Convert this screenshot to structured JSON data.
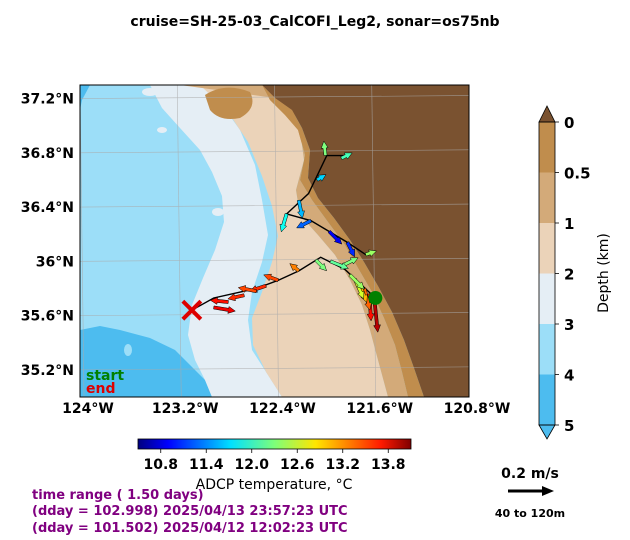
{
  "title": "cruise=SH-25-03_CalCOFI_Leg2,   sonar=os75nb",
  "chart_data": {
    "type": "map",
    "lat_ticks": [
      "37.2°N",
      "36.8°N",
      "36.4°N",
      "36°N",
      "35.6°N",
      "35.2°N"
    ],
    "lat_values": [
      37.2,
      36.8,
      36.4,
      36.0,
      35.6,
      35.2
    ],
    "lon_ticks": [
      "124°W",
      "123.2°W",
      "122.4°W",
      "121.6°W",
      "120.8°W"
    ],
    "lon_values": [
      -124.0,
      -123.2,
      -122.4,
      -121.6,
      -120.8
    ],
    "lon_range": [
      -124.0,
      -120.8
    ],
    "lat_range": [
      35.0,
      37.3
    ],
    "grid": true,
    "start_label": "start",
    "end_label": "end",
    "start_color": "#008000",
    "end_color": "#dd0000",
    "start_position": [
      -121.57,
      35.73
    ],
    "end_position": [
      -123.08,
      35.64
    ],
    "track": [
      [
        -121.57,
        35.73
      ],
      [
        -121.82,
        35.94
      ],
      [
        -122.02,
        36.03
      ],
      [
        -122.2,
        35.93
      ],
      [
        -122.37,
        35.86
      ],
      [
        -122.55,
        35.8
      ],
      [
        -122.9,
        35.73
      ],
      [
        -123.08,
        35.64
      ]
    ],
    "track2": [
      [
        -121.65,
        36.05
      ],
      [
        -121.8,
        36.14
      ],
      [
        -121.95,
        36.22
      ],
      [
        -122.1,
        36.3
      ],
      [
        -122.3,
        36.35
      ],
      [
        -122.12,
        36.5
      ],
      [
        -121.97,
        36.78
      ],
      [
        -121.8,
        36.78
      ]
    ],
    "depth_colorbar": {
      "label": "Depth (km)",
      "ticks": [
        "0",
        "0.5",
        "1",
        "2",
        "3",
        "4",
        "5"
      ],
      "colors": [
        "#c08d4d",
        "#d3aa79",
        "#ebd3b9",
        "#e5eef5",
        "#9cdef8",
        "#4dbcef"
      ]
    },
    "temperature_colorbar": {
      "label": "ADCP temperature, °C",
      "ticks": [
        "10.8",
        "11.4",
        "12.0",
        "12.6",
        "13.2",
        "13.8"
      ],
      "tick_values": [
        10.8,
        11.4,
        12.0,
        12.6,
        13.2,
        13.8
      ],
      "range": [
        10.5,
        14.1
      ]
    },
    "scale_arrow": {
      "label": "0.2 m/s",
      "depth_range": "40 to 120m"
    },
    "vectors": [
      {
        "lon": -121.58,
        "lat": 35.73,
        "u": 0.02,
        "v": -0.19,
        "temp": 13.9
      },
      {
        "lon": -121.62,
        "lat": 35.76,
        "u": 0.01,
        "v": -0.15,
        "temp": 13.6
      },
      {
        "lon": -121.66,
        "lat": 35.8,
        "u": 0.03,
        "v": -0.12,
        "temp": 13.3
      },
      {
        "lon": -121.7,
        "lat": 35.83,
        "u": 0.04,
        "v": -0.1,
        "temp": 13.0
      },
      {
        "lon": -121.74,
        "lat": 35.87,
        "u": 0.05,
        "v": -0.11,
        "temp": 12.6
      },
      {
        "lon": -121.78,
        "lat": 35.9,
        "u": 0.08,
        "v": -0.08,
        "temp": 12.4
      },
      {
        "lon": -121.86,
        "lat": 35.96,
        "u": 0.1,
        "v": 0.05,
        "temp": 12.3
      },
      {
        "lon": -121.94,
        "lat": 36.0,
        "u": 0.1,
        "v": -0.04,
        "temp": 12.2
      },
      {
        "lon": -122.06,
        "lat": 36.01,
        "u": 0.06,
        "v": -0.06,
        "temp": 12.3
      },
      {
        "lon": -122.2,
        "lat": 35.93,
        "u": -0.05,
        "v": 0.04,
        "temp": 13.2
      },
      {
        "lon": -122.37,
        "lat": 35.86,
        "u": -0.08,
        "v": 0.03,
        "temp": 13.4
      },
      {
        "lon": -122.47,
        "lat": 35.82,
        "u": -0.09,
        "v": -0.03,
        "temp": 13.5
      },
      {
        "lon": -122.55,
        "lat": 35.78,
        "u": -0.1,
        "v": 0.02,
        "temp": 13.4
      },
      {
        "lon": -122.65,
        "lat": 35.75,
        "u": -0.09,
        "v": -0.02,
        "temp": 13.5
      },
      {
        "lon": -122.78,
        "lat": 35.7,
        "u": -0.1,
        "v": 0.01,
        "temp": 13.6
      },
      {
        "lon": -122.9,
        "lat": 35.66,
        "u": 0.12,
        "v": -0.02,
        "temp": 13.7
      },
      {
        "lon": -121.65,
        "lat": 36.05,
        "u": 0.06,
        "v": 0.02,
        "temp": 12.4
      },
      {
        "lon": -121.8,
        "lat": 36.14,
        "u": 0.04,
        "v": -0.08,
        "temp": 11.1
      },
      {
        "lon": -121.95,
        "lat": 36.22,
        "u": 0.07,
        "v": -0.07,
        "temp": 10.9
      },
      {
        "lon": -122.1,
        "lat": 36.3,
        "u": -0.08,
        "v": -0.04,
        "temp": 11.3
      },
      {
        "lon": -122.3,
        "lat": 36.35,
        "u": -0.03,
        "v": -0.1,
        "temp": 11.9
      },
      {
        "lon": -122.2,
        "lat": 36.45,
        "u": 0.02,
        "v": -0.1,
        "temp": 11.6
      },
      {
        "lon": -122.05,
        "lat": 36.6,
        "u": 0.05,
        "v": 0.03,
        "temp": 11.7
      },
      {
        "lon": -121.98,
        "lat": 36.78,
        "u": -0.01,
        "v": 0.08,
        "temp": 12.3
      },
      {
        "lon": -121.85,
        "lat": 36.76,
        "u": 0.06,
        "v": 0.03,
        "temp": 12.1
      }
    ]
  },
  "time_info": {
    "line1": "time range ( 1.50 days)",
    "line2": "(dday = 102.998) 2025/04/13 23:57:23 UTC",
    "line3": "(dday = 101.502) 2025/04/12 12:02:23 UTC",
    "color": "#800080"
  }
}
